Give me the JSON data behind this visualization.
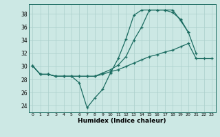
{
  "xlabel": "Humidex (Indice chaleur)",
  "bg_color": "#cce8e4",
  "grid_color": "#aacfcb",
  "line_color": "#1a6b60",
  "xlim": [
    -0.5,
    23.5
  ],
  "ylim": [
    23.0,
    39.5
  ],
  "yticks": [
    24,
    26,
    28,
    30,
    32,
    34,
    36,
    38
  ],
  "xticks": [
    0,
    1,
    2,
    3,
    4,
    5,
    6,
    7,
    8,
    9,
    10,
    11,
    12,
    13,
    14,
    15,
    16,
    17,
    18,
    19,
    20,
    21,
    22,
    23
  ],
  "line1_x": [
    0,
    1,
    2,
    3,
    4,
    5,
    6,
    7,
    8,
    9,
    10,
    11,
    12,
    13,
    14,
    15,
    16,
    17,
    18,
    19,
    20,
    21
  ],
  "line1_y": [
    30.1,
    28.8,
    28.8,
    28.5,
    28.5,
    28.5,
    27.5,
    23.7,
    25.2,
    26.5,
    29.0,
    31.2,
    34.2,
    37.8,
    38.6,
    38.6,
    38.6,
    38.6,
    38.6,
    37.0,
    35.2,
    32.0
  ],
  "line2_x": [
    0,
    1,
    2,
    3,
    4,
    5,
    6,
    7,
    8,
    9,
    10,
    11,
    12,
    13,
    14,
    15,
    16,
    17,
    18,
    19,
    20
  ],
  "line2_y": [
    30.1,
    28.8,
    28.8,
    28.5,
    28.5,
    28.5,
    28.5,
    28.5,
    28.5,
    29.0,
    29.5,
    30.2,
    31.5,
    34.0,
    36.0,
    38.6,
    38.6,
    38.6,
    38.2,
    37.2,
    35.2
  ],
  "line3_x": [
    0,
    1,
    2,
    3,
    4,
    5,
    6,
    7,
    8,
    9,
    10,
    11,
    12,
    13,
    14,
    15,
    16,
    17,
    18,
    19,
    20,
    21,
    22,
    23
  ],
  "line3_y": [
    30.1,
    28.8,
    28.8,
    28.5,
    28.5,
    28.5,
    28.5,
    28.5,
    28.5,
    28.8,
    29.2,
    29.5,
    30.0,
    30.5,
    31.0,
    31.5,
    31.8,
    32.2,
    32.5,
    33.0,
    33.5,
    31.2,
    31.2,
    31.2
  ]
}
